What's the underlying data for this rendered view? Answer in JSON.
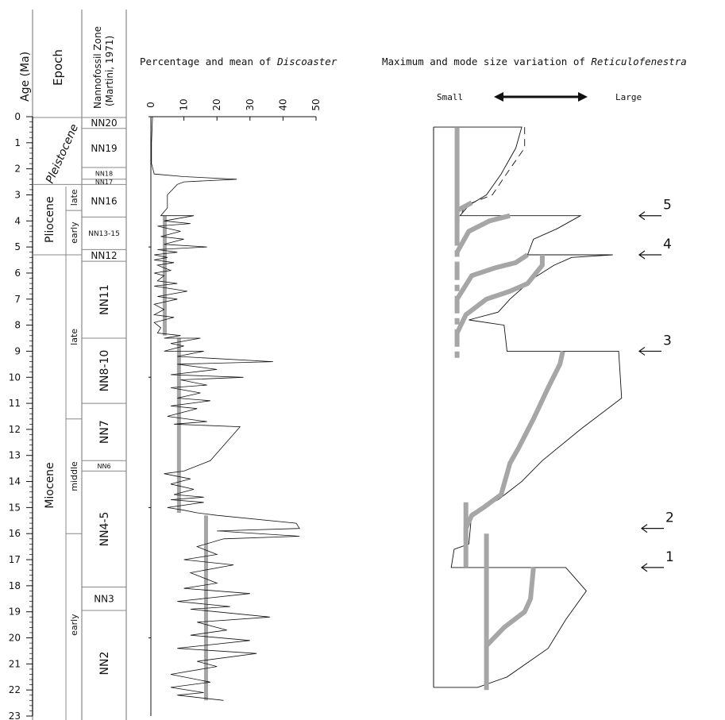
{
  "columns": {
    "age": "Age (Ma)",
    "epoch": "Epoch",
    "nanno_line1": "Nannofossil Zone",
    "nanno_line2": "(Martini, 1971)"
  },
  "age_axis": {
    "min": 0,
    "max": 23,
    "ticks": [
      0,
      1,
      2,
      3,
      4,
      5,
      6,
      7,
      8,
      9,
      10,
      11,
      12,
      13,
      14,
      15,
      16,
      17,
      18,
      19,
      20,
      21,
      22,
      23
    ]
  },
  "epochs": [
    {
      "name": "Pleistocene",
      "from": 0,
      "to": 2.6,
      "italic": true
    },
    {
      "name": "Pliocene",
      "from": 2.6,
      "to": 5.3
    },
    {
      "name": "Miocene",
      "from": 5.3,
      "to": 23
    }
  ],
  "subepochs": [
    {
      "name": "late",
      "from": 2.6,
      "to": 3.6
    },
    {
      "name": "early",
      "from": 3.6,
      "to": 5.3
    },
    {
      "name": "late",
      "from": 5.3,
      "to": 11.6
    },
    {
      "name": "middle",
      "from": 11.6,
      "to": 16.0
    },
    {
      "name": "early",
      "from": 16.0,
      "to": 23
    }
  ],
  "zones": [
    {
      "name": "NN20",
      "from": 0.0,
      "to": 0.45,
      "size": "m"
    },
    {
      "name": "NN19",
      "from": 0.45,
      "to": 1.95,
      "size": "m"
    },
    {
      "name": "NN18",
      "from": 1.95,
      "to": 2.4,
      "size": "s"
    },
    {
      "name": "NN17",
      "from": 2.4,
      "to": 2.6,
      "size": "s"
    },
    {
      "name": "NN16",
      "from": 2.6,
      "to": 3.85,
      "size": "m"
    },
    {
      "name": "NN13-15",
      "from": 3.85,
      "to": 5.1,
      "size": "s2"
    },
    {
      "name": "NN12",
      "from": 5.1,
      "to": 5.55,
      "size": "m"
    },
    {
      "name": "NN11",
      "from": 5.55,
      "to": 8.5,
      "size": "l"
    },
    {
      "name": "NN8-10",
      "from": 8.5,
      "to": 11.0,
      "size": "l"
    },
    {
      "name": "NN7",
      "from": 11.0,
      "to": 13.2,
      "size": "l"
    },
    {
      "name": "NN6",
      "from": 13.2,
      "to": 13.6,
      "size": "s"
    },
    {
      "name": "NN4-5",
      "from": 13.6,
      "to": 18.05,
      "size": "l"
    },
    {
      "name": "NN3",
      "from": 18.05,
      "to": 18.95,
      "size": "m"
    },
    {
      "name": "NN2",
      "from": 18.95,
      "to": 23,
      "size": "l"
    }
  ],
  "chart_data": [
    {
      "type": "line",
      "title_prefix": "Percentage and mean of ",
      "title_italic": "Discoaster",
      "x_ticks": [
        0,
        10,
        20,
        30,
        40,
        50
      ],
      "xlim": [
        0,
        50
      ],
      "ylim": [
        0,
        23
      ],
      "percentage": [
        [
          0.5,
          0
        ],
        [
          0.2,
          1.0
        ],
        [
          0.2,
          1.8
        ],
        [
          1,
          2.2
        ],
        [
          10,
          2.3
        ],
        [
          26,
          2.4
        ],
        [
          10,
          2.5
        ],
        [
          8,
          2.6
        ],
        [
          5,
          3.0
        ],
        [
          5,
          3.5
        ],
        [
          3,
          3.8
        ],
        [
          13,
          3.8
        ],
        [
          4,
          4.0
        ],
        [
          12,
          4.1
        ],
        [
          2,
          4.2
        ],
        [
          9,
          4.4
        ],
        [
          3,
          4.6
        ],
        [
          10,
          4.7
        ],
        [
          4,
          4.9
        ],
        [
          17,
          5.0
        ],
        [
          2,
          5.1
        ],
        [
          8,
          5.2
        ],
        [
          1,
          5.3
        ],
        [
          5,
          5.4
        ],
        [
          1,
          5.5
        ],
        [
          7,
          5.6
        ],
        [
          2,
          5.7
        ],
        [
          6,
          5.9
        ],
        [
          1,
          6.0
        ],
        [
          4,
          6.1
        ],
        [
          2,
          6.3
        ],
        [
          8,
          6.4
        ],
        [
          1,
          6.5
        ],
        [
          11,
          6.7
        ],
        [
          2,
          6.9
        ],
        [
          8,
          7.0
        ],
        [
          1,
          7.2
        ],
        [
          4,
          7.4
        ],
        [
          1,
          7.6
        ],
        [
          7,
          7.7
        ],
        [
          1,
          7.9
        ],
        [
          3,
          8.1
        ],
        [
          2,
          8.3
        ],
        [
          9,
          8.4
        ],
        [
          4,
          8.5
        ],
        [
          15,
          8.5
        ],
        [
          6,
          8.7
        ],
        [
          10,
          8.8
        ],
        [
          4,
          9.0
        ],
        [
          16,
          9.0
        ],
        [
          8,
          9.2
        ],
        [
          37,
          9.4
        ],
        [
          8,
          9.5
        ],
        [
          20,
          9.7
        ],
        [
          6,
          9.9
        ],
        [
          28,
          10.0
        ],
        [
          9,
          10.1
        ],
        [
          17,
          10.3
        ],
        [
          6,
          10.4
        ],
        [
          15,
          10.6
        ],
        [
          8,
          10.8
        ],
        [
          18,
          10.9
        ],
        [
          6,
          11.1
        ],
        [
          14,
          11.2
        ],
        [
          5,
          11.5
        ],
        [
          17,
          11.7
        ],
        [
          7,
          11.8
        ],
        [
          27,
          11.9
        ],
        [
          18,
          13.2
        ],
        [
          10,
          13.6
        ],
        [
          4,
          13.7
        ],
        [
          12,
          13.9
        ],
        [
          6,
          14.1
        ],
        [
          13,
          14.3
        ],
        [
          7,
          14.5
        ],
        [
          16,
          14.6
        ],
        [
          6,
          14.7
        ],
        [
          16,
          14.8
        ],
        [
          5,
          15.0
        ],
        [
          10,
          15.1
        ],
        [
          14,
          15.2
        ],
        [
          20,
          15.3
        ],
        [
          44,
          15.6
        ],
        [
          45,
          15.8
        ],
        [
          20,
          15.9
        ],
        [
          45,
          16.1
        ],
        [
          22,
          16.2
        ],
        [
          14,
          16.5
        ],
        [
          20,
          16.8
        ],
        [
          10,
          17.0
        ],
        [
          25,
          17.2
        ],
        [
          12,
          17.5
        ],
        [
          20,
          17.9
        ],
        [
          10,
          18.1
        ],
        [
          30,
          18.3
        ],
        [
          8,
          18.6
        ],
        [
          24,
          18.8
        ],
        [
          12,
          18.9
        ],
        [
          36,
          19.2
        ],
        [
          14,
          19.4
        ],
        [
          23,
          19.7
        ],
        [
          12,
          19.9
        ],
        [
          30,
          20.1
        ],
        [
          8,
          20.4
        ],
        [
          32,
          20.6
        ],
        [
          14,
          20.9
        ],
        [
          20,
          21.1
        ],
        [
          6,
          21.4
        ],
        [
          18,
          21.7
        ],
        [
          6,
          21.9
        ],
        [
          16,
          22.1
        ],
        [
          8,
          22.2
        ],
        [
          22,
          22.4
        ]
      ],
      "mean_segments": [
        {
          "value": 4.2,
          "from": 3.8,
          "to": 8.4
        },
        {
          "value": 8.5,
          "from": 8.5,
          "to": 15.2
        },
        {
          "value": 16.7,
          "from": 15.3,
          "to": 22.4
        }
      ]
    },
    {
      "type": "line",
      "title_prefix": "Maximum and mode size variation of ",
      "title_italic": "Reticulofenestra",
      "left_label": "Small",
      "right_label": "Large",
      "size_scale": [
        0,
        100
      ],
      "outline": [
        [
          0,
          0.4
        ],
        [
          30,
          0.4
        ],
        [
          28,
          1.2
        ],
        [
          23,
          2.2
        ],
        [
          18,
          3.0
        ],
        [
          12,
          3.4
        ],
        [
          9,
          3.8
        ],
        [
          50,
          3.8
        ],
        [
          42,
          4.3
        ],
        [
          34,
          4.7
        ],
        [
          32,
          5.3
        ],
        [
          61,
          5.3
        ],
        [
          47,
          5.4
        ],
        [
          41,
          5.7
        ],
        [
          34,
          6.2
        ],
        [
          26,
          7.0
        ],
        [
          22,
          7.5
        ],
        [
          12,
          7.8
        ],
        [
          24,
          8.0
        ],
        [
          25,
          9.0
        ],
        [
          63,
          9.0
        ],
        [
          64,
          10.8
        ],
        [
          50,
          12.0
        ],
        [
          37,
          13.2
        ],
        [
          30,
          14.0
        ],
        [
          22,
          14.7
        ],
        [
          13,
          15.2
        ],
        [
          12,
          16.4
        ],
        [
          7,
          16.6
        ],
        [
          6,
          17.3
        ],
        [
          45,
          17.3
        ],
        [
          52,
          18.2
        ],
        [
          45,
          19.3
        ],
        [
          39,
          20.4
        ],
        [
          25,
          21.5
        ],
        [
          15,
          21.9
        ],
        [
          0,
          21.9
        ]
      ],
      "outline_dash": [
        [
          31,
          0.4
        ],
        [
          31,
          1.2
        ],
        [
          26,
          2.0
        ],
        [
          20,
          3.0
        ],
        [
          11,
          3.4
        ],
        [
          9,
          3.8
        ]
      ],
      "mode_lines": [
        {
          "points": [
            [
              -2,
              0.4
            ],
            [
              -2,
              3.0
            ]
          ],
          "style": "solid"
        },
        {
          "points": [
            [
              -2,
              3.0
            ],
            [
              -2,
              5.6
            ]
          ],
          "style": "dashed"
        },
        {
          "points": [
            [
              -2,
              5.6
            ],
            [
              -2,
              9.4
            ]
          ],
          "style": "dashed"
        },
        {
          "points": [
            [
              -2,
              4.3
            ],
            [
              -2,
              3.6
            ],
            [
              3,
              3.3
            ]
          ],
          "style": "solid"
        },
        {
          "points": [
            [
              -2,
              5.2
            ],
            [
              2,
              4.4
            ],
            [
              9,
              4.0
            ],
            [
              16,
              3.8
            ]
          ],
          "style": "solid"
        },
        {
          "points": [
            [
              -2,
              7.0
            ],
            [
              3,
              6.1
            ],
            [
              11,
              5.8
            ],
            [
              18,
              5.6
            ],
            [
              22,
              5.3
            ]
          ],
          "style": "solid"
        },
        {
          "points": [
            [
              -2,
              8.3
            ],
            [
              1,
              7.6
            ],
            [
              8,
              7.0
            ],
            [
              16,
              6.7
            ],
            [
              22,
              6.4
            ],
            [
              27,
              5.7
            ],
            [
              27,
              5.3
            ]
          ],
          "style": "solid"
        },
        {
          "points": [
            [
              34,
              9.0
            ],
            [
              33,
              9.5
            ],
            [
              29,
              10.4
            ],
            [
              24,
              11.6
            ],
            [
              19,
              12.7
            ],
            [
              16,
              13.3
            ],
            [
              13,
              14.5
            ],
            [
              7,
              15.0
            ],
            [
              3,
              15.3
            ],
            [
              1,
              15.8
            ],
            [
              1,
              16.3
            ]
          ],
          "style": "solid"
        },
        {
          "points": [
            [
              1,
              14.8
            ],
            [
              1,
              17.3
            ]
          ],
          "style": "solid"
        },
        {
          "points": [
            [
              8,
              16.0
            ],
            [
              8,
              22.0
            ]
          ],
          "style": "solid"
        },
        {
          "points": [
            [
              8,
              20.3
            ],
            [
              14,
              19.6
            ],
            [
              21,
              19.0
            ],
            [
              23,
              18.5
            ],
            [
              24,
              17.3
            ]
          ],
          "style": "solid"
        }
      ],
      "events": [
        {
          "label": "5",
          "age": 3.8
        },
        {
          "label": "4",
          "age": 5.3
        },
        {
          "label": "3",
          "age": 9.0
        },
        {
          "label": "2",
          "age": 15.8
        },
        {
          "label": "1",
          "age": 17.3
        }
      ]
    }
  ],
  "colors": {
    "line": "#111111",
    "mean": "#a6a6a6",
    "column_border": "#888888"
  }
}
